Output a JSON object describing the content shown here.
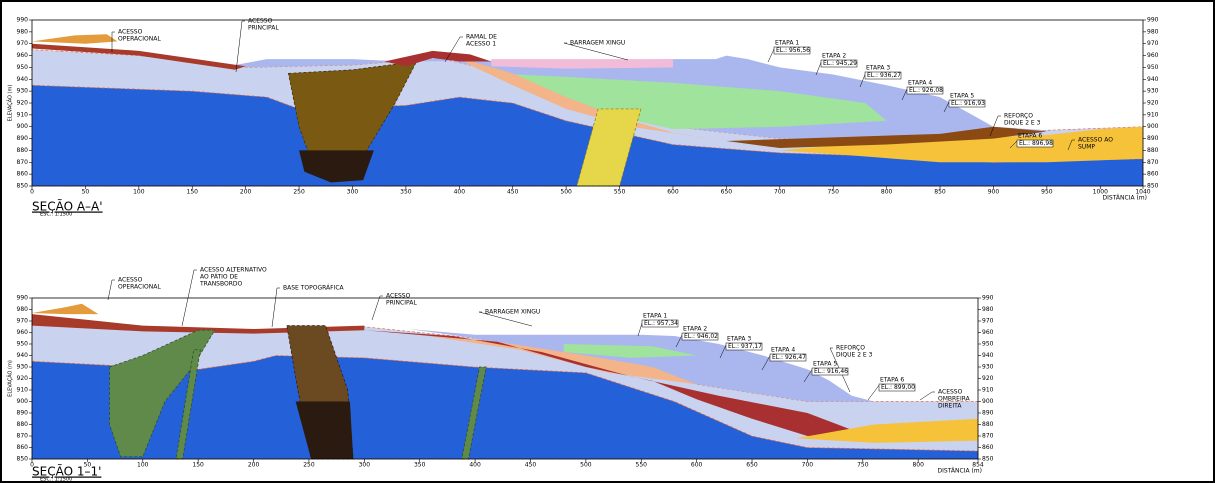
{
  "sections": [
    {
      "title": "SEÇÃO A–A'",
      "scale": "ESC.: 1:1500",
      "y_axis_label": "ELEVAÇÃO (m)",
      "x_axis_label": "DISTÂNCIA (m)",
      "yticks": [
        850,
        860,
        870,
        880,
        890,
        900,
        910,
        920,
        930,
        940,
        950,
        960,
        970,
        980,
        990
      ],
      "xticks": [
        0,
        50,
        100,
        150,
        200,
        250,
        300,
        350,
        400,
        450,
        500,
        550,
        600,
        650,
        700,
        750,
        800,
        850,
        900,
        950,
        1000,
        1040
      ],
      "annotations": [
        [
          "ACESSO",
          "OPERACIONAL"
        ],
        [
          "ACESSO",
          "PRINCIPAL"
        ],
        [
          "RAMAL DE",
          "ACESSO 1"
        ],
        [
          "BARRAGEM XINGU"
        ],
        [
          "REFORÇO",
          "DIQUE 2 E 3"
        ],
        [
          "ACESSO AO",
          "SUMP"
        ]
      ],
      "stages": [
        {
          "name": "ETAPA 1",
          "elevation": "EL.: 956,56"
        },
        {
          "name": "ETAPA 2",
          "elevation": "EL.: 945,29"
        },
        {
          "name": "ETAPA 3",
          "elevation": "EL.: 936,27"
        },
        {
          "name": "ETAPA 4",
          "elevation": "EL.: 926,08"
        },
        {
          "name": "ETAPA 5",
          "elevation": "EL.: 916,93"
        },
        {
          "name": "ETAPA 6",
          "elevation": "EL.: 896,98"
        }
      ]
    },
    {
      "title": "SEÇÃO 1–1'",
      "scale": "ESC.: 1:1500",
      "y_axis_label": "ELEVAÇÃO (m)",
      "x_axis_label": "DISTÂNCIA (m)",
      "yticks": [
        850,
        860,
        870,
        880,
        890,
        900,
        910,
        920,
        930,
        940,
        950,
        960,
        970,
        980,
        990
      ],
      "xticks": [
        0,
        50,
        100,
        150,
        200,
        250,
        300,
        350,
        400,
        450,
        500,
        550,
        600,
        650,
        700,
        750,
        800,
        854
      ],
      "annotations": [
        [
          "ACESSO",
          "OPERACIONAL"
        ],
        [
          "ACESSO ALTERNATIVO",
          "AO PÁTIO DE",
          "TRANSBORDO"
        ],
        [
          "BASE TOPOGRÁFICA"
        ],
        [
          "ACESSO",
          "PRINCIPAL"
        ],
        [
          "BARRAGEM XINGU"
        ],
        [
          "REFORÇO",
          "DIQUE 2 E 3"
        ],
        [
          "ACESSO",
          "OMBREIRA",
          "DIREITA"
        ]
      ],
      "stages": [
        {
          "name": "ETAPA 1",
          "elevation": "EL.: 957,34"
        },
        {
          "name": "ETAPA 2",
          "elevation": "EL.: 946,02"
        },
        {
          "name": "ETAPA 3",
          "elevation": "EL.: 937,17"
        },
        {
          "name": "ETAPA 4",
          "elevation": "EL.: 926,47"
        },
        {
          "name": "ETAPA 5",
          "elevation": "EL.: 916,46"
        },
        {
          "name": "ETAPA 6",
          "elevation": "EL.: 899,00"
        }
      ]
    }
  ]
}
